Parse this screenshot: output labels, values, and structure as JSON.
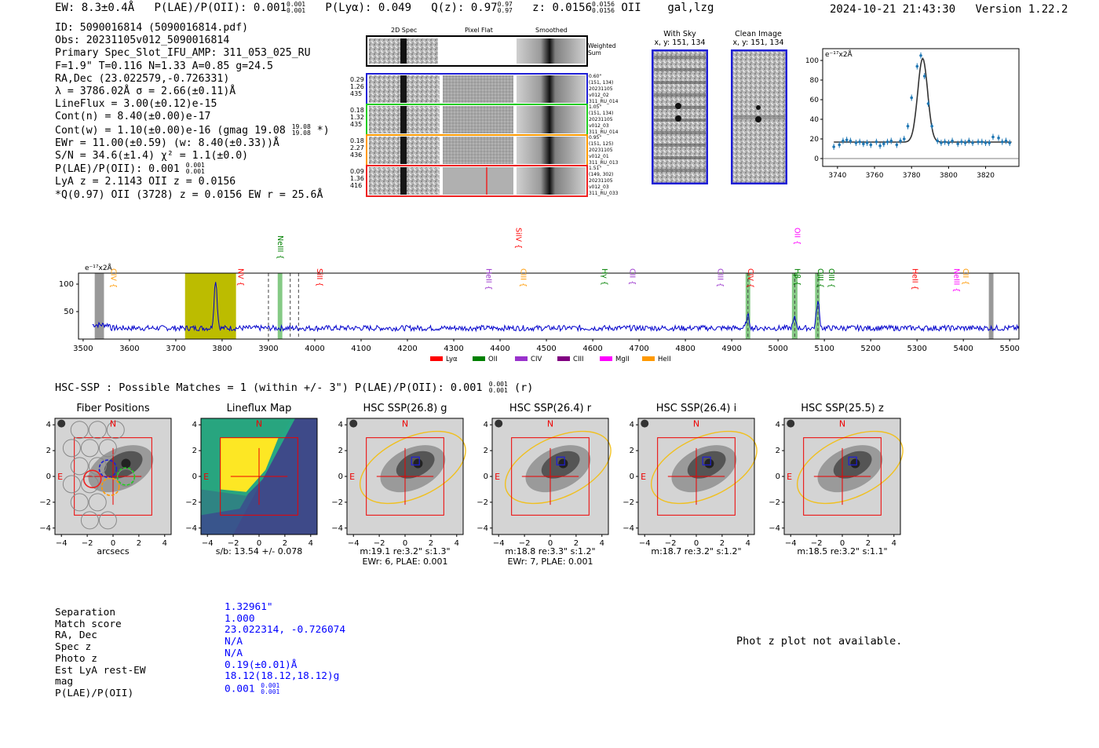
{
  "header": {
    "ew": "EW: 8.3±0.4Å",
    "plae_label": "P(LAE)/P(OII): 0.001",
    "plae_hi": "0.001",
    "plae_lo": "0.001",
    "plya": "P(Lyα): 0.049",
    "qz_label": "Q(z): 0.97",
    "qz_hi": "0.97",
    "qz_lo": "0.97",
    "z_label": "z: 0.0156",
    "z_hi": "0.0156",
    "z_lo": "0.0156",
    "z_line": "OII",
    "flags": "gal,lzg",
    "timestamp": "2024-10-21 21:43:30",
    "version": "Version 1.22.2"
  },
  "info": {
    "line1": "ID: 5090016814 (5090016814.pdf)",
    "line2": "Obs: 20231105v012_5090016814",
    "line3": "Primary Spec_Slot_IFU_AMP: 311_053_025_RU",
    "line4": "F=1.9\"  T=0.116  N=1.33  A=0.85  g=24.5",
    "line5": "RA,Dec (23.022579,-0.726331)",
    "line6": "λ = 3786.02Å  σ = 2.66(±0.11)Å",
    "line7": "LineFlux = 3.00(±0.12)e-15",
    "line8": "Cont(n) = 8.40(±0.00)e-17",
    "line9a": "Cont(w) = 1.10(±0.00)e-16 (gmag 19.08",
    "line9hi": "19.08",
    "line9lo": "19.08",
    "line9b": "*)",
    "line10": "EWr = 11.00(±0.59) (w: 8.40(±0.33))Å",
    "line11": "S/N = 34.6(±1.4)  χ² = 1.1(±0.0)",
    "line12": "P(LAE)/P(OII): 0.001",
    "line12hi": "0.001",
    "line12lo": "0.001",
    "line13": "LyA z = 2.1143  OII z = 0.0156",
    "line14": "*Q(0.97) OII (3728) z = 0.0156  EW r = 25.6Å"
  },
  "stamps": {
    "col_titles": [
      "2D Spec",
      "Pixel Flat",
      "Smoothed"
    ],
    "weighted_sum": "Weighted Sum",
    "rows": [
      {
        "stats": [
          "0.29",
          "1.26",
          "435"
        ],
        "notes": [
          "0.60\"",
          "(151, 134)",
          "20231105",
          "v012_02",
          "311_RU_014"
        ],
        "color": "#1f1fd6"
      },
      {
        "stats": [
          "0.18",
          "1.32",
          "435"
        ],
        "notes": [
          "1.05\"",
          "(151, 134)",
          "20231105",
          "v012_03",
          "311_RU_014"
        ],
        "color": "#22cc22"
      },
      {
        "stats": [
          "0.18",
          "2.27",
          "436"
        ],
        "notes": [
          "0.95\"",
          "(151, 125)",
          "20231105",
          "v012_01",
          "311_RU_013"
        ],
        "color": "#ff9900"
      },
      {
        "stats": [
          "0.09",
          "1.36",
          "416"
        ],
        "notes": [
          "1.51\"",
          "(149, 302)",
          "20231105",
          "v012_03",
          "311_RU_033"
        ],
        "color": "#ee2222"
      }
    ]
  },
  "sky": {
    "with_sky_title": "With Sky",
    "with_sky_coords": "x, y: 151, 134",
    "clean_title": "Clean Image",
    "clean_coords": "x, y: 151, 134"
  },
  "zoom_chart": {
    "ylabel": "e⁻¹⁷x2Å",
    "x_ticks": [
      "3740",
      "3760",
      "3780",
      "3800",
      "3820"
    ],
    "y_ticks": [
      "0",
      "20",
      "40",
      "60",
      "80",
      "100"
    ]
  },
  "spectrum": {
    "ylabel": "e⁻¹⁷x2Å",
    "x_ticks": [
      "3500",
      "3600",
      "3700",
      "3800",
      "3900",
      "4000",
      "4100",
      "4200",
      "4300",
      "4400",
      "4500",
      "4600",
      "4700",
      "4800",
      "4900",
      "5000",
      "5100",
      "5200",
      "5300",
      "5400",
      "5500"
    ],
    "y_ticks": [
      "50",
      "100"
    ],
    "line_labels": [
      {
        "name": "CIV",
        "color": "#ff9900"
      },
      {
        "name": "NV",
        "color": "#ff0000"
      },
      {
        "name": "NeIII",
        "color": "#008000"
      },
      {
        "name": "SiII",
        "color": "#ff0000"
      },
      {
        "name": "HeII",
        "color": "#9932cc"
      },
      {
        "name": "SiIV",
        "color": "#ff0000"
      },
      {
        "name": "CIII",
        "color": "#ff9900"
      },
      {
        "name": "Hγ",
        "color": "#008000"
      },
      {
        "name": "CII",
        "color": "#9932cc"
      },
      {
        "name": "CIII",
        "color": "#9932cc"
      },
      {
        "name": "CIV",
        "color": "#ff0000"
      },
      {
        "name": "Hβ",
        "color": "#008000"
      },
      {
        "name": "OII",
        "color": "#ff00ff"
      },
      {
        "name": "OIII",
        "color": "#008000"
      },
      {
        "name": "OIII",
        "color": "#008000"
      },
      {
        "name": "HeII",
        "color": "#ff0000"
      },
      {
        "name": "NeIII",
        "color": "#ff00ff"
      },
      {
        "name": "CII",
        "color": "#ff9900"
      }
    ],
    "legend": [
      {
        "name": "Lyα",
        "color": "#ff0000"
      },
      {
        "name": "OII",
        "color": "#008000"
      },
      {
        "name": "CIV",
        "color": "#9932cc"
      },
      {
        "name": "CIII",
        "color": "#800080"
      },
      {
        "name": "MgII",
        "color": "#ff00ff"
      },
      {
        "name": "HeII",
        "color": "#ff9900"
      }
    ]
  },
  "hsc": {
    "title_prefix": "HSC-SSP : Possible Matches = 1 (within +/- 3\")  P(LAE)/P(OII): 0.001",
    "title_hi": "0.001",
    "title_lo": "0.001",
    "title_suffix": "(r)",
    "panels": [
      {
        "title": "Fiber Positions",
        "caption1": "arcsecs",
        "caption2": ""
      },
      {
        "title": "Lineflux Map",
        "caption1": "s/b: 13.54 +/- 0.078",
        "caption2": ""
      },
      {
        "title": "HSC SSP(26.8) g",
        "caption1": "m:19.1  re:3.2\"  s:1.3\"",
        "caption2": "EWr: 6, PLAE: 0.001"
      },
      {
        "title": "HSC SSP(26.4) r",
        "caption1": "m:18.8  re:3.3\"  s:1.2\"",
        "caption2": "EWr: 7, PLAE: 0.001"
      },
      {
        "title": "HSC SSP(26.4) i",
        "caption1": "m:18.7  re:3.2\"  s:1.2\"",
        "caption2": ""
      },
      {
        "title": "HSC SSP(25.5) z",
        "caption1": "m:18.5  re:3.2\"  s:1.1\"",
        "caption2": ""
      }
    ],
    "axis_ticks": [
      "−4",
      "−2",
      "0",
      "2",
      "4"
    ],
    "label_n": "N",
    "label_e": "E"
  },
  "match": {
    "labels": [
      "Separation",
      "Match score",
      "RA, Dec",
      "Spec z",
      "Photo z",
      "Est LyA rest-EW",
      "mag",
      "P(LAE)/P(OII)"
    ],
    "values": [
      "1.32961\"",
      "1.000",
      "23.022314, -0.726074",
      "N/A",
      "N/A",
      "0.19(±0.01)Å",
      "18.12(18.12,18.12)g",
      "0.001"
    ],
    "plae_hi": "0.001",
    "plae_lo": "0.001"
  },
  "photz": {
    "message": "Phot z plot not available."
  },
  "chart_data": [
    {
      "type": "scatter",
      "title": "",
      "xlabel": "",
      "ylabel": "e⁻¹⁷x2Å",
      "xlim": [
        3732,
        3838
      ],
      "ylim": [
        -8,
        112
      ],
      "x": [
        3738,
        3741,
        3743,
        3745,
        3747,
        3750,
        3752,
        3754,
        3756,
        3758,
        3761,
        3763,
        3765,
        3767,
        3769,
        3772,
        3774,
        3776,
        3778,
        3780,
        3783,
        3785,
        3787,
        3789,
        3791,
        3794,
        3796,
        3798,
        3800,
        3802,
        3805,
        3807,
        3809,
        3811,
        3813,
        3816,
        3818,
        3820,
        3822,
        3824,
        3827,
        3829,
        3831,
        3833
      ],
      "y": [
        12,
        14,
        18,
        19,
        18,
        16,
        17,
        15,
        16,
        14,
        17,
        13,
        15,
        17,
        18,
        14,
        18,
        20,
        33,
        62,
        94,
        105,
        84,
        56,
        33,
        18,
        16,
        17,
        16,
        18,
        15,
        17,
        16,
        18,
        16,
        17,
        17,
        16,
        16,
        22,
        21,
        17,
        18,
        16
      ],
      "fit_model": "gaussian",
      "fit_center": 3786.02,
      "fit_sigma": 2.66,
      "fit_continuum": 16.8,
      "fit_peak": 102
    },
    {
      "type": "line",
      "title": "",
      "xlabel": "",
      "ylabel": "e⁻¹⁷x2Å",
      "xlim": [
        3490,
        5520
      ],
      "ylim": [
        0,
        120
      ],
      "continuum": 20,
      "emission_lines": [
        {
          "x": 3786,
          "peak": 108
        },
        {
          "x": 4935,
          "peak": 42
        },
        {
          "x": 5036,
          "peak": 38
        },
        {
          "x": 5086,
          "peak": 68
        }
      ],
      "shaded_bands": [
        {
          "x0": 3720,
          "x1": 3830,
          "color": "olive"
        },
        {
          "x0": 3525,
          "x1": 3545,
          "color": "gray"
        },
        {
          "x0": 5455,
          "x1": 5465,
          "color": "gray"
        },
        {
          "x0": 3920,
          "x1": 3930,
          "color": "green"
        },
        {
          "x0": 4930,
          "x1": 4940,
          "color": "green"
        },
        {
          "x0": 5030,
          "x1": 5042,
          "color": "green"
        },
        {
          "x0": 5080,
          "x1": 5090,
          "color": "green"
        }
      ]
    }
  ]
}
